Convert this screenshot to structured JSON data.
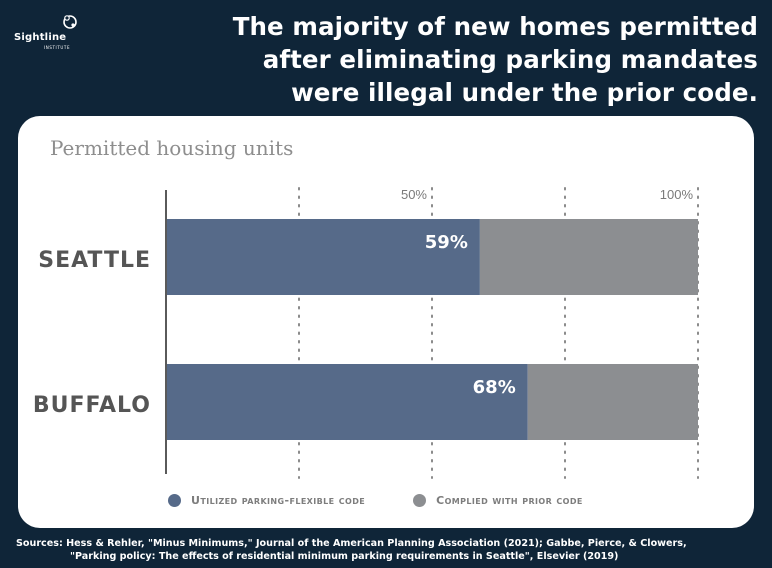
{
  "brand": {
    "name": "Sightline",
    "sub": "INSTITUTE"
  },
  "headline": {
    "line1": "The majority of new homes permitted",
    "line2": "after eliminating parking mandates",
    "line3": "were illegal under the prior code."
  },
  "colors": {
    "background": "#0f2538",
    "card": "#ffffff",
    "flexible": "#566a89",
    "prior": "#8c8e91"
  },
  "chart_data": {
    "type": "bar",
    "orientation": "horizontal",
    "stacked": true,
    "title": "Permitted housing units",
    "categories": [
      "Seattle",
      "Buffalo"
    ],
    "category_labels": [
      "Seattle",
      "Buffalo"
    ],
    "series": [
      {
        "name": "Utilized parking-flexible code",
        "values": [
          59,
          68
        ],
        "labels": [
          "59%",
          "68%"
        ],
        "color": "#566a89"
      },
      {
        "name": "Complied with prior code",
        "values": [
          41,
          32
        ],
        "color": "#8c8e91"
      }
    ],
    "xlim": [
      0,
      100
    ],
    "ticks": [
      {
        "value": 50,
        "label": "50%"
      },
      {
        "value": 100,
        "label": "100%"
      }
    ],
    "gridlines": [
      25,
      50,
      75,
      100
    ],
    "grid": true,
    "legend_position": "bottom"
  },
  "sources": {
    "line1": "Sources: Hess & Rehler, \"Minus Minimums,\" Journal of the American Planning Association (2021); Gabbe, Pierce, & Clowers,",
    "line2": "\"Parking policy: The effects of residential minimum parking requirements in Seattle\", Elsevier (2019)"
  }
}
